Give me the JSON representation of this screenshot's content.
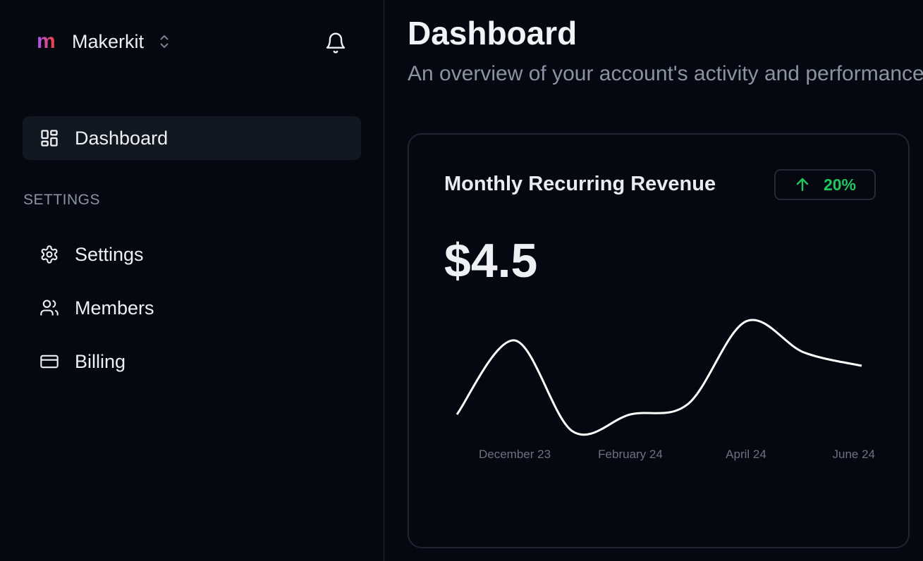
{
  "sidebar": {
    "brand": {
      "logo_letter": "m",
      "name": "Makerkit"
    },
    "items": [
      {
        "label": "Dashboard",
        "icon": "layout-grid-icon",
        "active": true
      },
      {
        "label": "Settings",
        "icon": "gear-icon"
      },
      {
        "label": "Members",
        "icon": "users-icon"
      },
      {
        "label": "Billing",
        "icon": "credit-card-icon"
      }
    ],
    "section_label": "SETTINGS"
  },
  "header": {
    "title": "Dashboard",
    "subtitle": "An overview of your account's activity and performance"
  },
  "card": {
    "title": "Monthly Recurring Revenue",
    "badge": {
      "text": "20%",
      "icon": "arrow-up-icon",
      "color": "#22c55e"
    },
    "value": "$4.5"
  },
  "chart_data": {
    "type": "line",
    "x_labels": [
      "",
      "December 23",
      "",
      "February 24",
      "",
      "April 24",
      "",
      "June 24"
    ],
    "series": [
      {
        "values": [
          62,
          167,
          38,
          62,
          77,
          194,
          150,
          131
        ]
      }
    ],
    "ylim": [
      0,
      220
    ],
    "grid": false,
    "line_color": "#ffffff"
  }
}
